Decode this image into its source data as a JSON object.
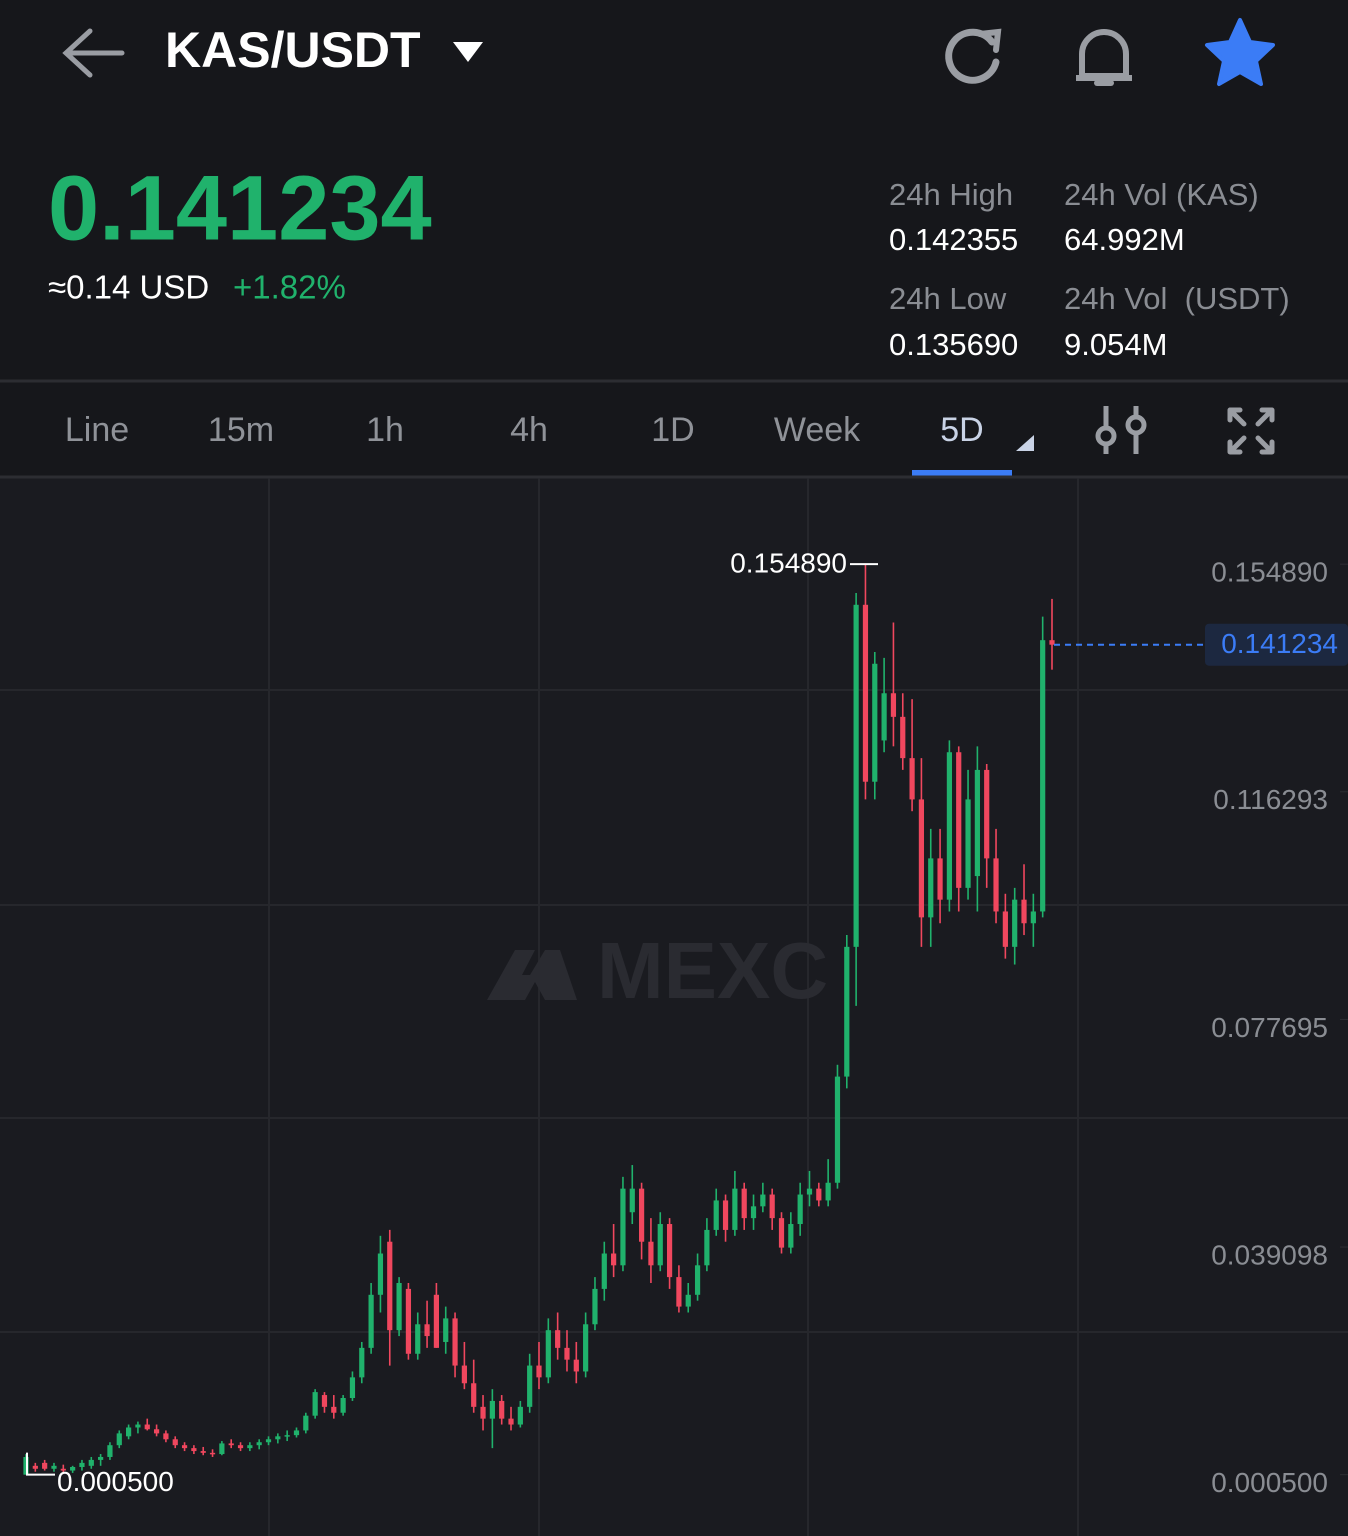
{
  "header": {
    "pair": "KAS/USDT"
  },
  "ticker": {
    "price": "0.141234",
    "approx": "≈0.14 USD",
    "change": "+1.82%",
    "stats": [
      {
        "label": "24h High",
        "value": "0.142355"
      },
      {
        "label": "24h Vol (KAS)",
        "value": "64.992M"
      },
      {
        "label": "24h Low",
        "value": "0.135690"
      },
      {
        "label": "24h Vol  (USDT)",
        "value": "9.054M"
      }
    ]
  },
  "tabs": [
    "Line",
    "15m",
    "1h",
    "4h",
    "1D",
    "Week",
    "5D"
  ],
  "watermark": "MEXC",
  "chart_data": {
    "type": "candlestick",
    "up_color": "#20b26c",
    "down_color": "#f0475e",
    "ylim": [
      -0.0099,
      0.1695
    ],
    "yticks": [
      {
        "value": 0.15489,
        "label": "0.154890"
      },
      0.116293,
      0.077695,
      0.039098,
      {
        "value": 0.0005,
        "label": "0.000500"
      }
    ],
    "max_label": {
      "value": 0.15489,
      "label": "0.154890"
    },
    "min_label": {
      "value": 0.0005,
      "label": "0.000500"
    },
    "last_price": 0.141234,
    "open": [
      0.0005,
      0.002,
      0.0025,
      0.0015,
      0.0015,
      0.0012,
      0.0018,
      0.002,
      0.003,
      0.0035,
      0.0055,
      0.007,
      0.0085,
      0.009,
      0.0082,
      0.0075,
      0.0065,
      0.0055,
      0.005,
      0.0045,
      0.0042,
      0.004,
      0.0058,
      0.0055,
      0.005,
      0.0055,
      0.006,
      0.0065,
      0.007,
      0.0072,
      0.008,
      0.0105,
      0.014,
      0.012,
      0.011,
      0.0135,
      0.017,
      0.022,
      0.031,
      0.04,
      0.025,
      0.032,
      0.021,
      0.026,
      0.031,
      0.023,
      0.027,
      0.019,
      0.016,
      0.012,
      0.01,
      0.013,
      0.01,
      0.009,
      0.012,
      0.019,
      0.017,
      0.025,
      0.022,
      0.02,
      0.018,
      0.026,
      0.032,
      0.038,
      0.036,
      0.045,
      0.049,
      0.04,
      0.036,
      0.043,
      0.034,
      0.029,
      0.031,
      0.036,
      0.042,
      0.047,
      0.042,
      0.049,
      0.044,
      0.046,
      0.048,
      0.044,
      0.039,
      0.043,
      0.048,
      0.049,
      0.047,
      0.05,
      0.068,
      0.09,
      0.148,
      0.118,
      0.125,
      0.133,
      0.129,
      0.122,
      0.115,
      0.095,
      0.105,
      0.098,
      0.123,
      0.1,
      0.102,
      0.12,
      0.105,
      0.096,
      0.09,
      0.098,
      0.094,
      0.096,
      0.142
    ],
    "high": [
      0.004,
      0.0025,
      0.003,
      0.0025,
      0.0022,
      0.002,
      0.003,
      0.0035,
      0.004,
      0.006,
      0.008,
      0.009,
      0.0095,
      0.01,
      0.009,
      0.008,
      0.007,
      0.006,
      0.0055,
      0.0052,
      0.0048,
      0.0062,
      0.0065,
      0.006,
      0.006,
      0.0065,
      0.007,
      0.0075,
      0.008,
      0.0085,
      0.011,
      0.015,
      0.0145,
      0.014,
      0.014,
      0.018,
      0.023,
      0.033,
      0.041,
      0.042,
      0.034,
      0.033,
      0.028,
      0.03,
      0.033,
      0.029,
      0.028,
      0.023,
      0.02,
      0.014,
      0.015,
      0.014,
      0.012,
      0.013,
      0.021,
      0.023,
      0.027,
      0.028,
      0.025,
      0.023,
      0.028,
      0.034,
      0.04,
      0.043,
      0.051,
      0.053,
      0.05,
      0.044,
      0.045,
      0.044,
      0.036,
      0.033,
      0.038,
      0.044,
      0.049,
      0.048,
      0.052,
      0.05,
      0.048,
      0.05,
      0.049,
      0.045,
      0.045,
      0.05,
      0.052,
      0.05,
      0.054,
      0.07,
      0.092,
      0.15,
      0.15489,
      0.14,
      0.139,
      0.145,
      0.133,
      0.132,
      0.122,
      0.11,
      0.11,
      0.125,
      0.124,
      0.12,
      0.124,
      0.121,
      0.11,
      0.099,
      0.1,
      0.104,
      0.099,
      0.146,
      0.149
    ],
    "low": [
      0.0005,
      0.001,
      0.0012,
      0.001,
      0.0008,
      0.0008,
      0.0012,
      0.0015,
      0.002,
      0.003,
      0.005,
      0.0065,
      0.0075,
      0.008,
      0.007,
      0.006,
      0.005,
      0.0045,
      0.004,
      0.0038,
      0.0035,
      0.0038,
      0.005,
      0.0045,
      0.0045,
      0.0048,
      0.0055,
      0.0058,
      0.0062,
      0.0068,
      0.0075,
      0.01,
      0.011,
      0.01,
      0.0105,
      0.013,
      0.016,
      0.021,
      0.028,
      0.019,
      0.024,
      0.02,
      0.02,
      0.022,
      0.022,
      0.021,
      0.017,
      0.015,
      0.011,
      0.008,
      0.005,
      0.009,
      0.008,
      0.0085,
      0.011,
      0.015,
      0.016,
      0.02,
      0.018,
      0.016,
      0.017,
      0.025,
      0.03,
      0.034,
      0.035,
      0.043,
      0.037,
      0.033,
      0.035,
      0.032,
      0.028,
      0.028,
      0.03,
      0.035,
      0.041,
      0.04,
      0.041,
      0.042,
      0.042,
      0.045,
      0.042,
      0.038,
      0.038,
      0.041,
      0.046,
      0.046,
      0.046,
      0.049,
      0.066,
      0.08,
      0.115,
      0.115,
      0.123,
      0.124,
      0.12,
      0.113,
      0.09,
      0.09,
      0.094,
      0.096,
      0.096,
      0.098,
      0.096,
      0.1,
      0.094,
      0.088,
      0.087,
      0.092,
      0.09,
      0.095,
      0.137
    ],
    "close": [
      0.0035,
      0.0015,
      0.0015,
      0.002,
      0.0012,
      0.0018,
      0.0025,
      0.003,
      0.0035,
      0.0055,
      0.0075,
      0.0085,
      0.009,
      0.0082,
      0.0075,
      0.0065,
      0.0055,
      0.005,
      0.0045,
      0.0042,
      0.004,
      0.0058,
      0.0055,
      0.005,
      0.0055,
      0.006,
      0.0065,
      0.007,
      0.0072,
      0.008,
      0.0105,
      0.0145,
      0.012,
      0.011,
      0.0135,
      0.017,
      0.022,
      0.031,
      0.038,
      0.025,
      0.033,
      0.021,
      0.026,
      0.024,
      0.022,
      0.027,
      0.019,
      0.016,
      0.012,
      0.01,
      0.013,
      0.01,
      0.009,
      0.012,
      0.019,
      0.017,
      0.025,
      0.022,
      0.02,
      0.018,
      0.026,
      0.032,
      0.038,
      0.036,
      0.049,
      0.049,
      0.04,
      0.036,
      0.043,
      0.034,
      0.029,
      0.031,
      0.036,
      0.042,
      0.047,
      0.042,
      0.049,
      0.044,
      0.046,
      0.048,
      0.044,
      0.039,
      0.043,
      0.048,
      0.049,
      0.047,
      0.05,
      0.068,
      0.09,
      0.148,
      0.118,
      0.138,
      0.133,
      0.129,
      0.122,
      0.115,
      0.095,
      0.105,
      0.098,
      0.123,
      0.1,
      0.115,
      0.12,
      0.105,
      0.096,
      0.09,
      0.098,
      0.094,
      0.096,
      0.142,
      0.141234
    ]
  }
}
